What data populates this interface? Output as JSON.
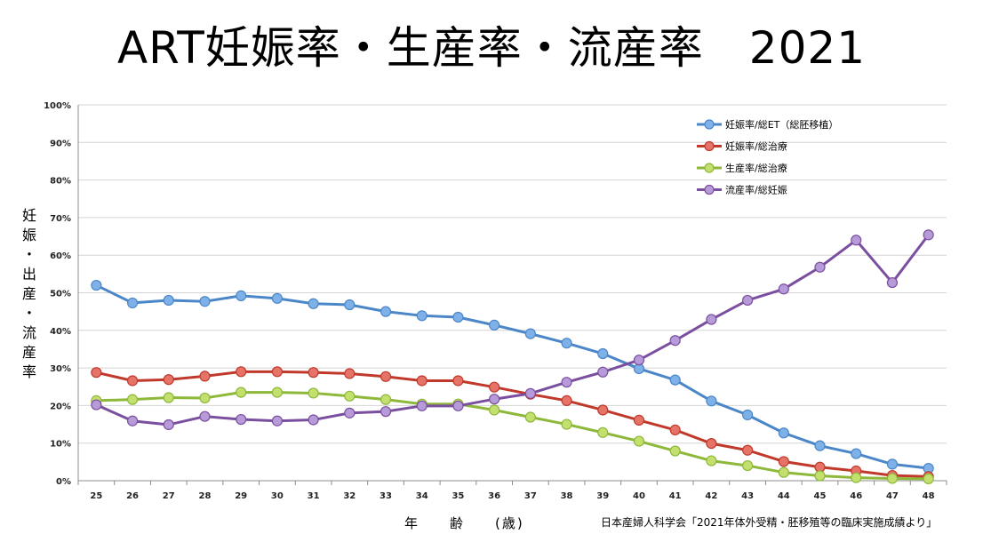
{
  "title": "ART妊娠率・生産率・流産率　2021",
  "ylabel_chars": [
    "妊",
    "娠",
    "・",
    "出",
    "産",
    "・",
    "流",
    "産",
    "率"
  ],
  "xlabel": "年　　齢　　(歳)",
  "source": "日本産婦人科学会「2021年体外受精・胚移殖等の臨床実施成績より」",
  "chart_data": {
    "type": "line",
    "title": "ART妊娠率・生産率・流産率　2021",
    "xlabel": "年　　齢　　(歳)",
    "ylabel": "妊娠・出産・流産率",
    "ylim": [
      0,
      100
    ],
    "y_ticks": [
      "0%",
      "10%",
      "20%",
      "30%",
      "40%",
      "50%",
      "60%",
      "70%",
      "80%",
      "90%",
      "100%"
    ],
    "categories": [
      "25",
      "26",
      "27",
      "28",
      "29",
      "30",
      "31",
      "32",
      "33",
      "34",
      "35",
      "36",
      "37",
      "38",
      "39",
      "40",
      "41",
      "42",
      "43",
      "44",
      "45",
      "46",
      "47",
      "48"
    ],
    "legend_position": "top-right",
    "series": [
      {
        "name": "妊娠率/総ET（総胚移植）",
        "color": "#4a86c8",
        "marker": "#7eb1e8",
        "values": [
          52.0,
          47.3,
          48.0,
          47.7,
          49.2,
          48.5,
          47.1,
          46.8,
          45.0,
          43.9,
          43.5,
          41.4,
          39.1,
          36.6,
          33.8,
          29.8,
          26.8,
          21.2,
          17.5,
          12.7,
          9.3,
          7.2,
          4.4,
          3.3
        ]
      },
      {
        "name": "妊娠率/総治療",
        "color": "#c0392b",
        "marker": "#e57368",
        "values": [
          28.8,
          26.6,
          26.9,
          27.8,
          29.0,
          29.0,
          28.8,
          28.5,
          27.7,
          26.6,
          26.6,
          24.9,
          23.0,
          21.3,
          18.8,
          16.1,
          13.5,
          9.9,
          8.1,
          5.1,
          3.6,
          2.6,
          1.4,
          1.1
        ]
      },
      {
        "name": "生産率/総治療",
        "color": "#8db83a",
        "marker": "#c3e06f",
        "values": [
          21.3,
          21.6,
          22.1,
          22.0,
          23.5,
          23.5,
          23.3,
          22.5,
          21.6,
          20.4,
          20.4,
          18.8,
          16.9,
          15.0,
          12.8,
          10.5,
          7.9,
          5.3,
          4.0,
          2.2,
          1.3,
          0.8,
          0.6,
          0.5
        ]
      },
      {
        "name": "流産率/総妊娠",
        "color": "#7b4fa0",
        "marker": "#b79ad8",
        "values": [
          20.2,
          15.9,
          14.9,
          17.1,
          16.3,
          15.9,
          16.2,
          18.0,
          18.4,
          19.9,
          19.9,
          21.7,
          23.2,
          26.2,
          28.9,
          32.1,
          37.3,
          42.9,
          48.0,
          51.0,
          56.8,
          64.0,
          52.7,
          65.4
        ]
      }
    ]
  }
}
